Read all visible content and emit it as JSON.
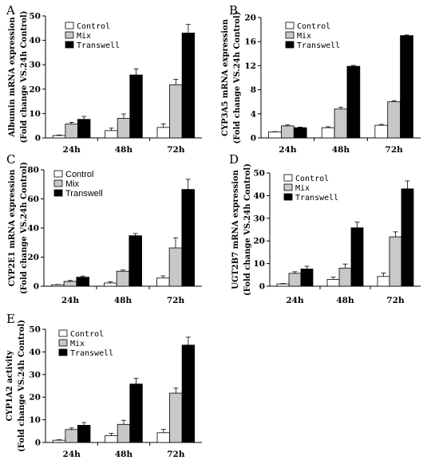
{
  "chart_data": [
    {
      "panel": "A",
      "type": "bar",
      "ylabel": "Albumin mRNA expression",
      "ylabel2": "(Fold change VS.24h Control)",
      "categories": [
        "24h",
        "48h",
        "72h"
      ],
      "ylim": [
        0,
        50
      ],
      "yticks": [
        0,
        10,
        20,
        30,
        40,
        50
      ],
      "series": [
        {
          "name": "Control",
          "values": [
            1,
            3,
            4.3
          ],
          "errors": [
            0.2,
            1.0,
            1.5
          ],
          "color": "#ffffff"
        },
        {
          "name": "Mix",
          "values": [
            5.7,
            8,
            21.8
          ],
          "errors": [
            0.7,
            1.8,
            2.2
          ],
          "color": "#c8c8c8"
        },
        {
          "name": "Transwell",
          "values": [
            7.6,
            25.8,
            43
          ],
          "errors": [
            1.2,
            2.5,
            3.5
          ],
          "color": "#000000"
        }
      ]
    },
    {
      "panel": "B",
      "type": "bar",
      "ylabel": "CYP3A5 mRNA expression",
      "ylabel2": "(Fold change VS.24h Control)",
      "categories": [
        "24h",
        "48h",
        "72h"
      ],
      "ylim": [
        0,
        20
      ],
      "yticks": [
        0,
        4,
        8,
        12,
        16,
        20
      ],
      "series": [
        {
          "name": "Control",
          "values": [
            1,
            1.7,
            2.1
          ],
          "errors": [
            0.05,
            0.15,
            0.15
          ],
          "color": "#ffffff"
        },
        {
          "name": "Mix",
          "values": [
            2,
            4.8,
            6
          ],
          "errors": [
            0.15,
            0.3,
            0.2
          ],
          "color": "#c8c8c8"
        },
        {
          "name": "Transwell",
          "values": [
            1.7,
            11.9,
            17
          ],
          "errors": [
            0.1,
            0.15,
            0.1
          ],
          "color": "#000000"
        }
      ]
    },
    {
      "panel": "C",
      "type": "bar",
      "ylabel": "CYP2E1 mRNA expression",
      "ylabel2": "(Fold change VS.24h Control)",
      "categories": [
        "24h",
        "48h",
        "72h"
      ],
      "ylim": [
        0,
        80
      ],
      "yticks": [
        0,
        20,
        40,
        60,
        80
      ],
      "series": [
        {
          "name": "Control",
          "values": [
            1,
            2.2,
            5.6
          ],
          "errors": [
            0.2,
            0.8,
            1.5
          ],
          "color": "#ffffff"
        },
        {
          "name": "Mix",
          "values": [
            3.3,
            10.3,
            26.3
          ],
          "errors": [
            0.6,
            0.8,
            7
          ],
          "color": "#c8c8c8"
        },
        {
          "name": "Transwell",
          "values": [
            6.2,
            34.7,
            66.5
          ],
          "errors": [
            0.8,
            1.5,
            7
          ]
        }
      ]
    },
    {
      "panel": "D",
      "type": "bar",
      "ylabel": "UGT2B7 mRNA expression",
      "ylabel2": "(Fold change VS.24h Control)",
      "categories": [
        "24h",
        "48h",
        "72h"
      ],
      "ylim": [
        0,
        50
      ],
      "yticks": [
        0,
        10,
        20,
        30,
        40,
        50
      ],
      "series": [
        {
          "name": "Control",
          "values": [
            1,
            3,
            4.3
          ],
          "errors": [
            0.2,
            1.0,
            1.5
          ],
          "color": "#ffffff"
        },
        {
          "name": "Mix",
          "values": [
            5.7,
            8,
            21.8
          ],
          "errors": [
            0.7,
            1.8,
            2.2
          ],
          "color": "#c8c8c8"
        },
        {
          "name": "Transwell",
          "values": [
            7.6,
            25.8,
            43
          ],
          "errors": [
            1.2,
            2.5,
            3.5
          ],
          "color": "#000000"
        }
      ]
    },
    {
      "panel": "E",
      "type": "bar",
      "ylabel": "CYP1A2 activity",
      "ylabel2": "(Fold change VS.24h Control)",
      "categories": [
        "24h",
        "48h",
        "72h"
      ],
      "ylim": [
        0,
        50
      ],
      "yticks": [
        0,
        10,
        20,
        30,
        40,
        50
      ],
      "series": [
        {
          "name": "Control",
          "values": [
            1,
            3,
            4.3
          ],
          "errors": [
            0.2,
            1.0,
            1.5
          ],
          "color": "#ffffff"
        },
        {
          "name": "Mix",
          "values": [
            5.7,
            8,
            21.8
          ],
          "errors": [
            0.7,
            1.8,
            2.2
          ],
          "color": "#c8c8c8"
        },
        {
          "name": "Transwell",
          "values": [
            7.6,
            25.8,
            43
          ],
          "errors": [
            1.2,
            2.5,
            3.5
          ],
          "color": "#000000"
        }
      ]
    }
  ]
}
